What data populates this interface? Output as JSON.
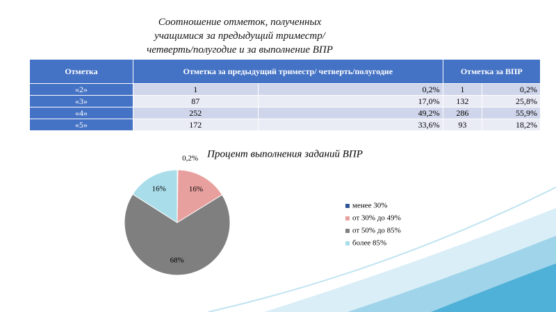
{
  "title": "Соотношение отметок, полученных учащимися за предыдущий триместр/четверть/полугодие и за выполнение ВПР",
  "table": {
    "header": [
      "Отметка",
      "Отметка за предыдущий триместр/ четверть/полугодие",
      "Отметка за ВПР"
    ],
    "rows": [
      [
        "«2»",
        "1",
        "0,2%",
        "1",
        "0,2%"
      ],
      [
        "«3»",
        "87",
        "17,0%",
        "132",
        "25,8%"
      ],
      [
        "«4»",
        "252",
        "49,2%",
        "286",
        "55,9%"
      ],
      [
        "«5»",
        "172",
        "33,6%",
        "93",
        "18,2%"
      ]
    ]
  },
  "chart_data": {
    "type": "pie",
    "title": "Процент выполнения заданий ВПР",
    "categories": [
      "менее 30%",
      "от 30% до 49%",
      "от 50% до 85%",
      "более 85%"
    ],
    "values": [
      0.2,
      16,
      68,
      16
    ],
    "value_labels": [
      "0,2%",
      "16%",
      "68%",
      "16%"
    ],
    "colors": [
      "#2e5597",
      "#e8a09e",
      "#7f7f7f",
      "#a9dde9"
    ],
    "legend": "right"
  }
}
